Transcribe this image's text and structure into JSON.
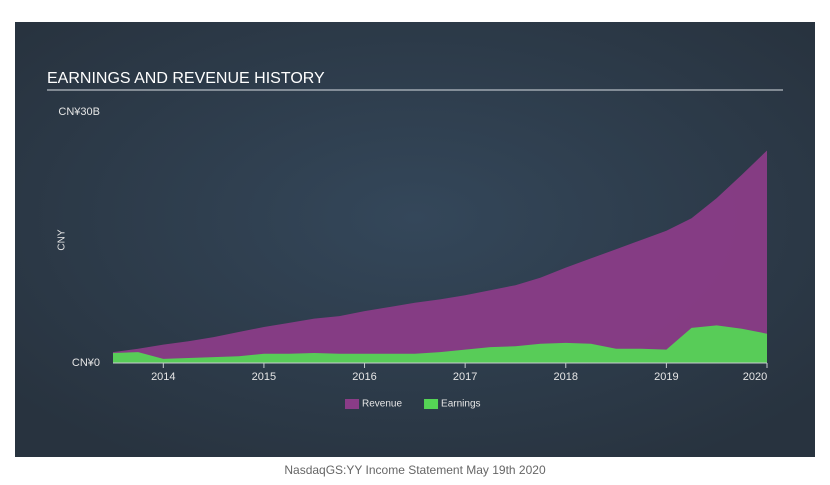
{
  "chart_data": {
    "type": "area",
    "title": "EARNINGS AND REVENUE HISTORY",
    "y_label": "CNY",
    "footer": "NasdaqGS:YY Income Statement May 19th 2020",
    "x": [
      2013.5,
      2013.75,
      2014.0,
      2014.25,
      2014.5,
      2014.75,
      2015.0,
      2015.25,
      2015.5,
      2015.75,
      2016.0,
      2016.25,
      2016.5,
      2016.75,
      2017.0,
      2017.25,
      2017.5,
      2017.75,
      2018.0,
      2018.25,
      2018.5,
      2018.75,
      2019.0,
      2019.25,
      2019.5,
      2019.75,
      2020.0
    ],
    "series": [
      {
        "name": "Revenue",
        "color": "#8a3c87",
        "values": [
          1.3,
          1.7,
          2.2,
          2.6,
          3.1,
          3.7,
          4.3,
          4.8,
          5.3,
          5.6,
          6.2,
          6.7,
          7.2,
          7.6,
          8.1,
          8.7,
          9.3,
          10.2,
          11.4,
          12.5,
          13.6,
          14.7,
          15.8,
          17.3,
          19.7,
          22.5,
          25.4
        ]
      },
      {
        "name": "Earnings",
        "color": "#55d455",
        "values": [
          1.2,
          1.3,
          0.5,
          0.6,
          0.7,
          0.8,
          1.1,
          1.1,
          1.2,
          1.1,
          1.1,
          1.1,
          1.1,
          1.3,
          1.6,
          1.9,
          2.0,
          2.3,
          2.4,
          2.3,
          1.7,
          1.7,
          1.6,
          4.2,
          4.5,
          4.1,
          3.5
        ]
      }
    ],
    "xlim": [
      2013.5,
      2020.0
    ],
    "xticks": [
      2014,
      2015,
      2016,
      2017,
      2018,
      2019,
      2020
    ],
    "ylim": [
      0,
      30
    ],
    "yticks": [
      {
        "value": 0,
        "label": "CN¥0"
      },
      {
        "value": 30,
        "label": "CN¥30B"
      }
    ],
    "legend": "bottom"
  }
}
